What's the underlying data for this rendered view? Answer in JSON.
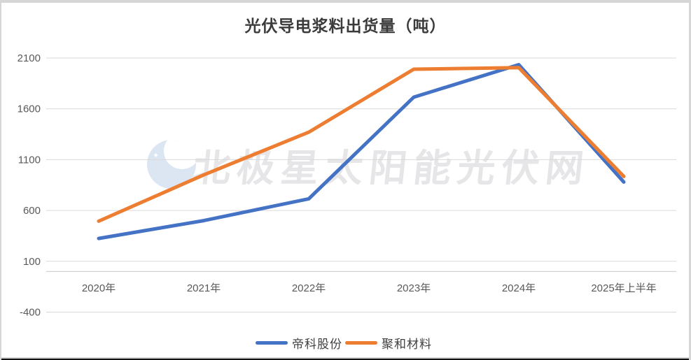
{
  "chart_data": {
    "type": "line",
    "title": "光伏导电浆料出货量（吨）",
    "categories": [
      "2020年",
      "2021年",
      "2022年",
      "2023年",
      "2024年",
      "2025年上半年"
    ],
    "series": [
      {
        "name": "帝科股份",
        "color": "#4472C4",
        "values": [
          325,
          500,
          715,
          1715,
          2035,
          880
        ]
      },
      {
        "name": "聚和材料",
        "color": "#ED7D31",
        "values": [
          495,
          950,
          1370,
          1990,
          2005,
          935
        ]
      }
    ],
    "ylim": [
      -400,
      2100
    ],
    "yticks": [
      2100,
      1600,
      1100,
      600,
      100,
      -400
    ],
    "grid": true,
    "legend_position": "bottom",
    "xlabel": "",
    "ylabel": ""
  },
  "watermark": {
    "text": "北极星太阳能光伏网",
    "logo_icon": "moon-stars-icon"
  },
  "style_colors": {
    "gridline": "#D9D9D9",
    "zero_axis": "#C9C9C9",
    "axis_label": "#595959",
    "title_text": "#3B3B3B",
    "watermark_text": "#E6E6E8",
    "watermark_logo": "#DCE6F3"
  }
}
